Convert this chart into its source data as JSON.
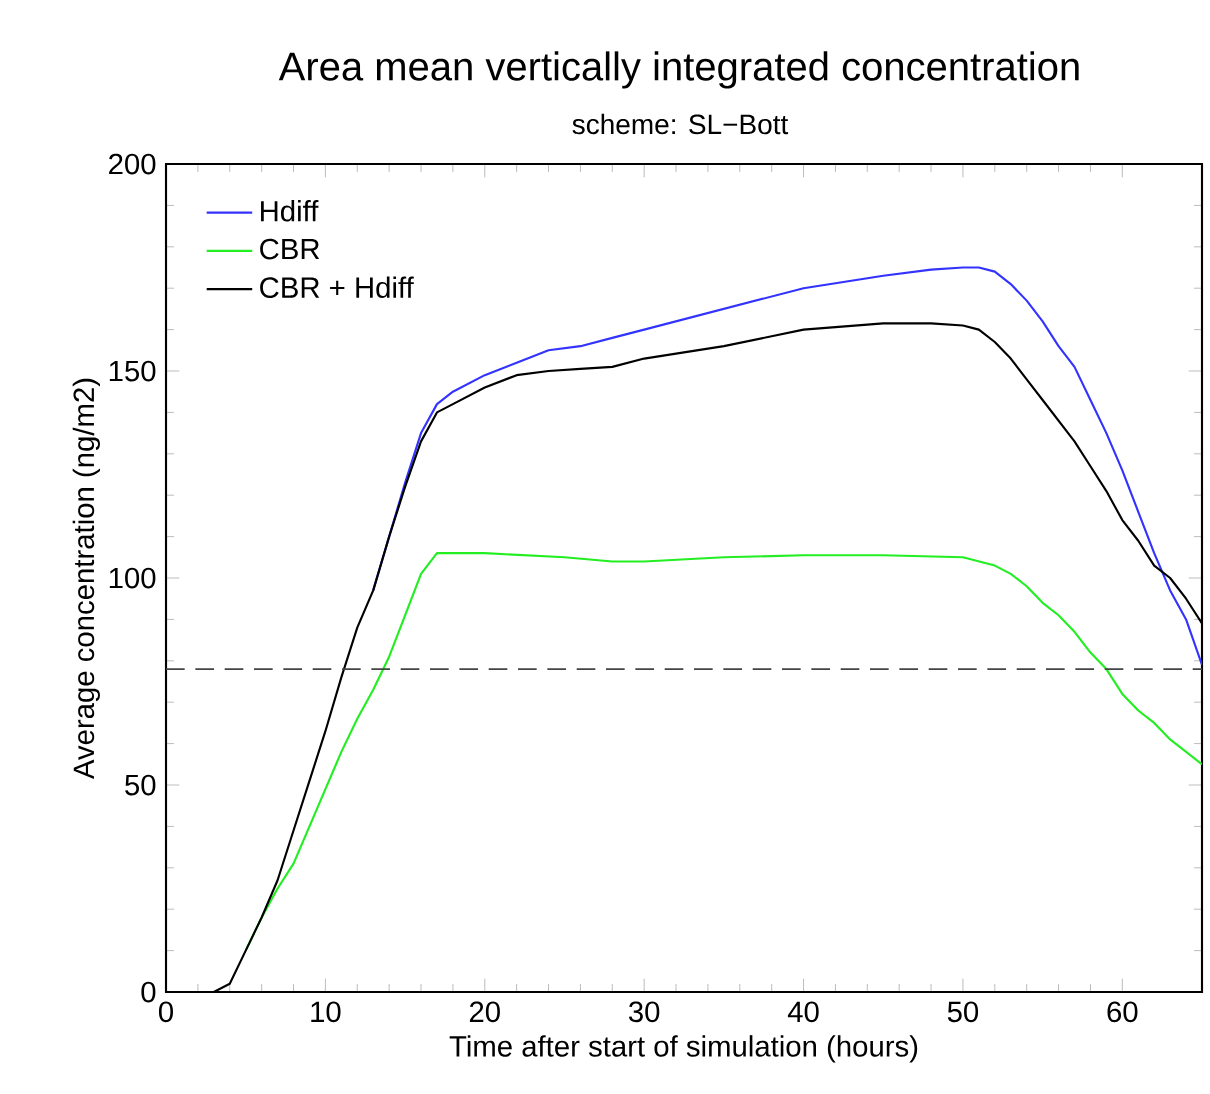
{
  "chart_data": {
    "type": "line",
    "title": "Area mean vertically integrated concentration",
    "subtitle": "scheme: SL−Bott",
    "xlabel": "Time after start of simulation (hours)",
    "ylabel": "Average concentration (ng/m2)",
    "xlim": [
      0,
      65
    ],
    "xticks": [
      0,
      10,
      20,
      30,
      40,
      50,
      60
    ],
    "ylim": [
      0,
      200
    ],
    "yticks": [
      0,
      50,
      100,
      150,
      200
    ],
    "legend": "top left",
    "grid": false,
    "line_style": "solid",
    "marker": "none",
    "series": [
      {
        "name": "Hdiff",
        "color": "#3333ff",
        "x": [
          13,
          14,
          15,
          16,
          17,
          18,
          20,
          22,
          24,
          26,
          28,
          30,
          35,
          40,
          45,
          48,
          50,
          51,
          52,
          53,
          54,
          55,
          56,
          57,
          58,
          59,
          60,
          61,
          62,
          63,
          64,
          65
        ],
        "values": [
          97,
          110,
          123,
          135,
          142,
          145,
          149,
          152,
          155,
          156,
          158,
          160,
          165,
          170,
          173,
          174.5,
          175,
          175,
          174,
          171,
          167,
          162,
          156,
          151,
          143,
          135,
          126,
          116,
          106,
          97,
          90,
          79
        ]
      },
      {
        "name": "CBR",
        "color": "#22ee22",
        "x": [
          5,
          6,
          7,
          8,
          9,
          10,
          11,
          12,
          13,
          14,
          15,
          16,
          17,
          20,
          25,
          28,
          30,
          35,
          40,
          45,
          50,
          51,
          52,
          53,
          54,
          55,
          56,
          57,
          58,
          59,
          60,
          61,
          62,
          63,
          64,
          65
        ],
        "values": [
          10,
          18,
          25,
          31,
          40,
          49,
          58,
          66,
          73,
          81,
          91,
          101,
          106,
          106,
          105,
          104,
          104,
          105,
          105.5,
          105.5,
          105,
          104,
          103,
          101,
          98,
          94,
          91,
          87,
          82,
          78,
          72,
          68,
          65,
          61,
          58,
          55
        ]
      },
      {
        "name": "CBR + Hdiff",
        "color": "#000000",
        "x": [
          0,
          3,
          4,
          5,
          6,
          7,
          8,
          9,
          10,
          11,
          12,
          13,
          14,
          15,
          16,
          17,
          18,
          20,
          22,
          24,
          26,
          28,
          30,
          35,
          40,
          45,
          48,
          50,
          51,
          52,
          53,
          54,
          55,
          56,
          57,
          58,
          59,
          60,
          61,
          62,
          63,
          64,
          65
        ],
        "values": [
          0,
          0,
          2,
          10,
          18,
          27,
          39,
          51,
          63,
          76,
          88,
          97,
          110,
          122,
          133,
          140,
          142,
          146,
          149,
          150,
          150.5,
          151,
          153,
          156,
          160,
          161.5,
          161.5,
          161,
          160,
          157,
          153,
          148,
          143,
          138,
          133,
          127,
          121,
          114,
          109,
          103,
          100,
          95,
          89
        ]
      }
    ],
    "ref_lines": [
      {
        "axis": "y",
        "value": 78,
        "color": "#444444",
        "line_style": "dashed"
      }
    ]
  }
}
